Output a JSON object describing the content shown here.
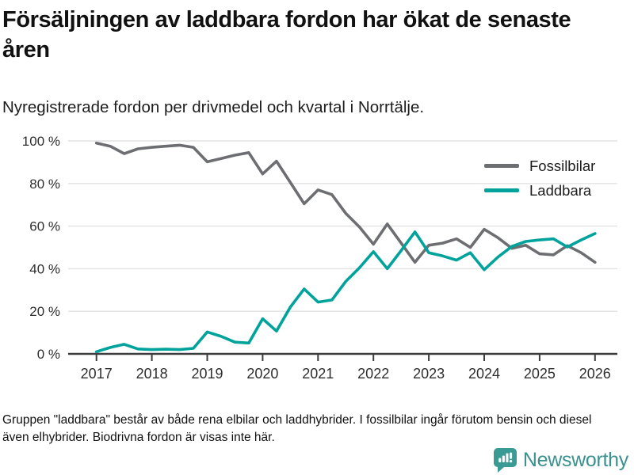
{
  "header": {
    "title": "Försäljningen av laddbara fordon har ökat de senaste åren",
    "subtitle": "Nyregistrerade fordon per drivmedel och kvartal i Norrtälje."
  },
  "footer": {
    "note": "Gruppen \"laddbara\" består av både rena elbilar och laddhybrider. I fossilbilar ingår förutom bensin och diesel även elhybrider. Biodrivna fordon är visas inte här."
  },
  "logo": {
    "name": "Newsworthy",
    "color": "#3a928e"
  },
  "chart_data": {
    "type": "line",
    "title": "Försäljningen av laddbara fordon har ökat de senaste åren",
    "xlabel": "",
    "ylabel": "",
    "ylim": [
      0,
      100
    ],
    "grid": "horizontal",
    "grid_color": "#e2e2e2",
    "axis_color": "#3c3c3c",
    "legend_position": "top-right",
    "x_unit": "quarter",
    "x_start": 2017,
    "x_step": 0.25,
    "x_ticks": [
      "2017",
      "2018",
      "2019",
      "2020",
      "2021",
      "2022",
      "2023",
      "2024",
      "2025",
      "2026"
    ],
    "y_ticks": [
      {
        "value": 0,
        "label": "0 %"
      },
      {
        "value": 20,
        "label": "20 %"
      },
      {
        "value": 40,
        "label": "40 %"
      },
      {
        "value": 60,
        "label": "60 %"
      },
      {
        "value": 80,
        "label": "80 %"
      },
      {
        "value": 100,
        "label": "100 %"
      }
    ],
    "series": [
      {
        "name": "Fossilbilar",
        "color": "#6d6e71",
        "values": [
          99,
          97.5,
          94,
          96.3,
          97,
          97.5,
          98,
          97,
          90.2,
          91.7,
          93.3,
          94.5,
          84.5,
          90.5,
          80.5,
          70.5,
          77,
          74.8,
          66,
          59.5,
          51.5,
          61,
          52,
          43,
          51,
          52,
          54,
          50,
          58.5,
          54.5,
          49.5,
          51,
          47,
          46.5,
          50.8,
          47.5,
          43
        ]
      },
      {
        "name": "Laddbara",
        "color": "#00a39b",
        "values": [
          1,
          3,
          4.5,
          2.3,
          2,
          2.2,
          2,
          2.6,
          10.3,
          8.2,
          5.5,
          5.1,
          16.5,
          10.7,
          22,
          30.5,
          24.3,
          25.3,
          34,
          40.5,
          48,
          40,
          48.5,
          57.3,
          47.5,
          46,
          44,
          47.5,
          39.5,
          45.5,
          50.5,
          52.8,
          53.5,
          54,
          50.2,
          53.5,
          56.5
        ]
      }
    ]
  }
}
